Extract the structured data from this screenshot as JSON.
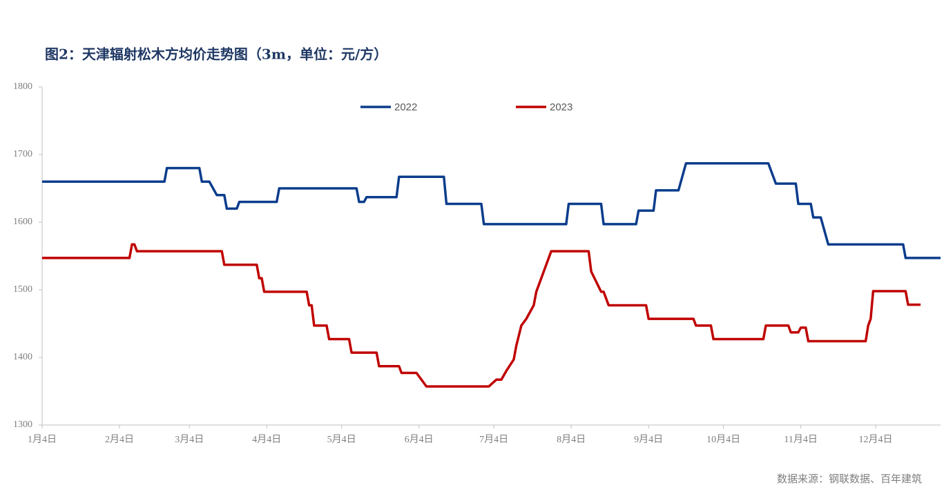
{
  "chart_data": {
    "type": "line",
    "title": "图2：天津辐射松木方均价走势图（3m，单位：元/方）",
    "source": "数据来源：钢联数据、百年建筑",
    "xlim": [
      "1月4日",
      "12月30日"
    ],
    "xticks": [
      "1月4日",
      "2月4日",
      "3月4日",
      "4月4日",
      "5月4日",
      "6月4日",
      "7月4日",
      "8月4日",
      "9月4日",
      "10月4日",
      "11月4日",
      "12月4日"
    ],
    "ylim": [
      1300,
      1800
    ],
    "yticks": [
      1300,
      1400,
      1500,
      1600,
      1700,
      1800
    ],
    "series": [
      {
        "name": "2022",
        "color": "#0b3c8c",
        "x": [
          "1月4日",
          "2月22日",
          "2月23日",
          "3月8日",
          "3月9日",
          "3月12日",
          "3月15日",
          "3月18日",
          "3月19日",
          "3月23日",
          "3月24日",
          "4月8日",
          "4月9日",
          "5月10日",
          "5月11日",
          "5月13日",
          "5月14日",
          "5月26日",
          "5月27日",
          "6月14日",
          "6月15日",
          "6月29日",
          "6月30日",
          "8月2日",
          "8月3日",
          "8月16日",
          "8月17日",
          "8月30日",
          "8月31日",
          "9月6日",
          "9月7日",
          "9月16日",
          "9月19日",
          "10月22日",
          "10月25日",
          "11月2日",
          "11月3日",
          "11月8日",
          "11月9日",
          "11月12日",
          "11月15日",
          "12月15日",
          "12月16日",
          "12月30日"
        ],
        "values": [
          1660,
          1660,
          1680,
          1680,
          1660,
          1660,
          1640,
          1640,
          1620,
          1620,
          1630,
          1630,
          1650,
          1650,
          1630,
          1630,
          1637,
          1637,
          1667,
          1667,
          1627,
          1627,
          1597,
          1597,
          1627,
          1627,
          1597,
          1597,
          1617,
          1617,
          1647,
          1647,
          1687,
          1687,
          1657,
          1657,
          1627,
          1627,
          1607,
          1607,
          1567,
          1567,
          1547,
          1547
        ]
      },
      {
        "name": "2023",
        "color": "#c00000",
        "x": [
          "1月4日",
          "2月8日",
          "2月9日",
          "2月10日",
          "2月11日",
          "3月17日",
          "3月18日",
          "3月31日",
          "4月1日",
          "4月2日",
          "4月3日",
          "4月20日",
          "4月21日",
          "4月22日",
          "4月23日",
          "4月28日",
          "4月29日",
          "5月7日",
          "5月8日",
          "5月18日",
          "5月19日",
          "5月27日",
          "5月28日",
          "6月3日",
          "6月7日",
          "7月2日",
          "7月5日",
          "7月7日",
          "7月9日",
          "7月12日",
          "7月13日",
          "7月15日",
          "7月17日",
          "7月20日",
          "7月21日",
          "7月25日",
          "7月27日",
          "8月11日",
          "8月12日",
          "8月16日",
          "8月17日",
          "8月19日",
          "9月3日",
          "9月4日",
          "9月22日",
          "9月23日",
          "9月29日",
          "9月30日",
          "10月20日",
          "10月21日",
          "10月30日",
          "10月31日",
          "11月3日",
          "11月4日",
          "11月6日",
          "11月7日",
          "11月30日",
          "12月1日",
          "12月2日",
          "12月3日",
          "12月16日",
          "12月17日",
          "12月22日"
        ],
        "values": [
          1547,
          1547,
          1567,
          1567,
          1557,
          1557,
          1537,
          1537,
          1517,
          1517,
          1497,
          1497,
          1477,
          1477,
          1447,
          1447,
          1427,
          1427,
          1407,
          1407,
          1387,
          1387,
          1377,
          1377,
          1357,
          1357,
          1367,
          1367,
          1380,
          1397,
          1417,
          1447,
          1457,
          1477,
          1497,
          1537,
          1557,
          1557,
          1527,
          1497,
          1497,
          1477,
          1477,
          1457,
          1457,
          1447,
          1447,
          1427,
          1427,
          1447,
          1447,
          1437,
          1437,
          1444,
          1444,
          1424,
          1424,
          1447,
          1457,
          1498,
          1498,
          1478,
          1478
        ]
      }
    ]
  }
}
